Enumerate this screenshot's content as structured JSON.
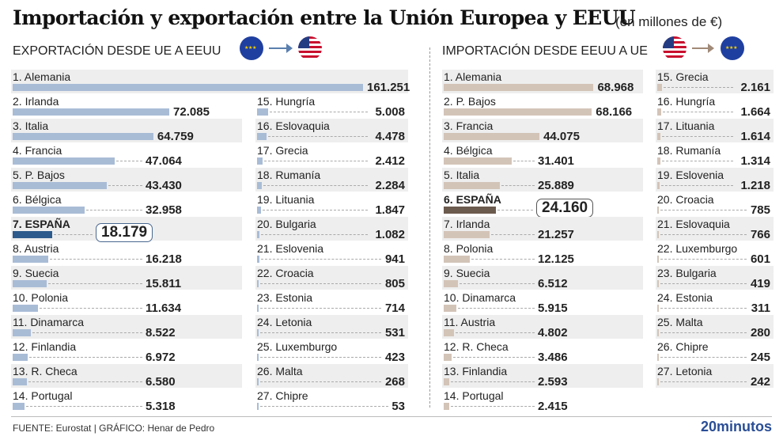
{
  "header": {
    "title": "Importación y exportación entre la Unión Europea y EEUU",
    "unit": "(en millones de €)"
  },
  "colors": {
    "export_bar": "#a9bcd6",
    "export_highlight": "#2c5a8c",
    "import_bar": "#d3c4b8",
    "import_highlight": "#6b5a4e"
  },
  "icons": {
    "eu_flag": "eu-flag-icon",
    "us_flag": "us-flag-icon",
    "arrow": "arrow-right-icon"
  },
  "footer": {
    "source": "FUENTE: Eurostat |  GRÁFICO: Henar de Pedro",
    "logo": "20minutos"
  },
  "chart_data": [
    {
      "type": "bar",
      "title": "EXPORTACIÓN DESDE UE A EEUU",
      "highlight": "7. ESPAÑA",
      "categories": [
        "1. Alemania",
        "2. Irlanda",
        "3. Italia",
        "4. Francia",
        "5. P. Bajos",
        "6. Bélgica",
        "7. ESPAÑA",
        "8. Austria",
        "9. Suecia",
        "10. Polonia",
        "11. Dinamarca",
        "12. Finlandia",
        "13. R. Checa",
        "14. Portugal",
        "15. Hungría",
        "16. Eslovaquia",
        "17. Grecia",
        "18. Rumanía",
        "19. Lituania",
        "20. Bulgaria",
        "21. Eslovenia",
        "22. Croacia",
        "23. Estonia",
        "24. Letonia",
        "25. Luxemburgo",
        "26. Malta",
        "27. Chipre"
      ],
      "labels": [
        "161.251",
        "72.085",
        "64.759",
        "47.064",
        "43.430",
        "32.958",
        "18.179",
        "16.218",
        "15.811",
        "11.634",
        "8.522",
        "6.972",
        "6.580",
        "5.318",
        "5.008",
        "4.478",
        "2.412",
        "2.284",
        "1.847",
        "1.082",
        "941",
        "805",
        "714",
        "531",
        "423",
        "268",
        "53"
      ],
      "values": [
        161251,
        72085,
        64759,
        47064,
        43430,
        32958,
        18179,
        16218,
        15811,
        11634,
        8522,
        6972,
        6580,
        5318,
        5008,
        4478,
        2412,
        2284,
        1847,
        1082,
        941,
        805,
        714,
        531,
        423,
        268,
        53
      ]
    },
    {
      "type": "bar",
      "title": "IMPORTACIÓN DESDE EEUU A UE",
      "highlight": "6. ESPAÑA",
      "categories": [
        "1. Alemania",
        "2. P. Bajos",
        "3. Francia",
        "4. Bélgica",
        "5. Italia",
        "6. ESPAÑA",
        "7. Irlanda",
        "8. Polonia",
        "9. Suecia",
        "10. Dinamarca",
        "11. Austria",
        "12. R. Checa",
        "13. Finlandia",
        "14. Portugal",
        "15. Grecia",
        "16. Hungría",
        "17. Lituania",
        "18. Rumanía",
        "19. Eslovenia",
        "20. Croacia",
        "21. Eslovaquia",
        "22. Luxemburgo",
        "23. Bulgaria",
        "24. Estonia",
        "25. Malta",
        "26. Chipre",
        "27. Letonia"
      ],
      "labels": [
        "68.968",
        "68.166",
        "44.075",
        "31.401",
        "25.889",
        "24.160",
        "21.257",
        "12.125",
        "6.512",
        "5.915",
        "4.802",
        "3.486",
        "2.593",
        "2.415",
        "2.161",
        "1.664",
        "1.614",
        "1.314",
        "1.218",
        "785",
        "766",
        "601",
        "419",
        "311",
        "280",
        "245",
        "242"
      ],
      "values": [
        68968,
        68166,
        44075,
        31401,
        25889,
        24160,
        21257,
        12125,
        6512,
        5915,
        4802,
        3486,
        2593,
        2415,
        2161,
        1664,
        1614,
        1314,
        1218,
        785,
        766,
        601,
        419,
        311,
        280,
        245,
        242
      ]
    }
  ]
}
